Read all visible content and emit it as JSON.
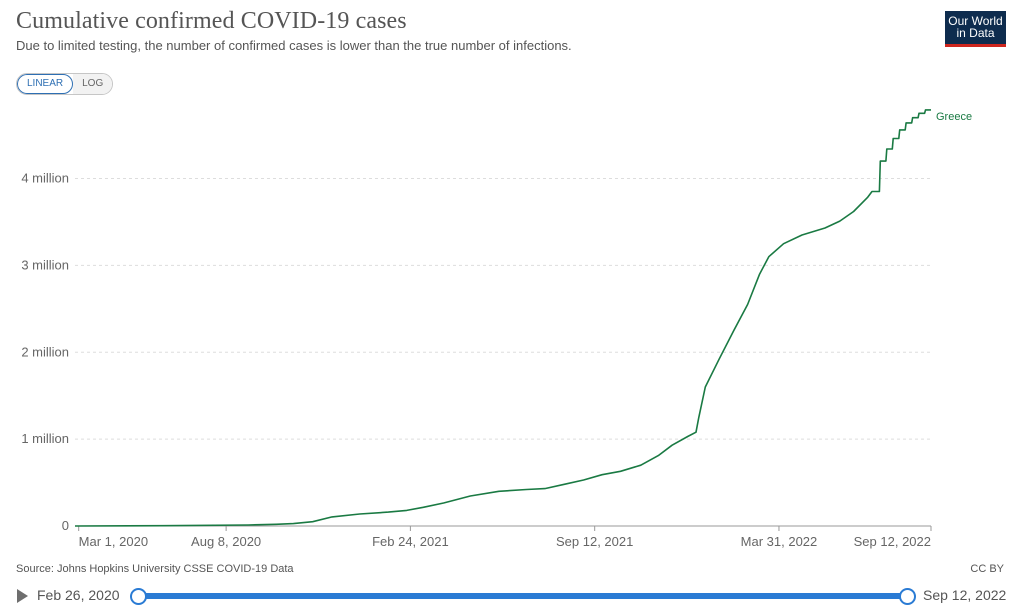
{
  "header": {
    "title": "Cumulative confirmed COVID-19 cases",
    "subtitle": "Due to limited testing, the number of confirmed cases is lower than the true number of infections.",
    "logo_line1": "Our World",
    "logo_line2": "in Data"
  },
  "scale_toggle": {
    "linear_label": "LINEAR",
    "log_label": "LOG",
    "selected": "LINEAR"
  },
  "footer": {
    "source": "Source: Johns Hopkins University CSSE COVID-19 Data",
    "license": "CC BY"
  },
  "timeline": {
    "start_label": "Feb 26, 2020",
    "end_label": "Sep 12, 2022"
  },
  "colors": {
    "series": "#1a7a43",
    "grid": "#dddddd",
    "accent": "#2a7bd4",
    "logo_bg": "#0e2c4e",
    "logo_stripe": "#ce261e"
  },
  "chart_data": {
    "type": "line",
    "title": "Cumulative confirmed COVID-19 cases",
    "subtitle": "Due to limited testing, the number of confirmed cases is lower than the true number of infections.",
    "xlabel": "",
    "ylabel": "",
    "scale": "linear",
    "grid": true,
    "legend": "right end label",
    "xlim": [
      "2020-02-26",
      "2022-09-12"
    ],
    "ylim": [
      0,
      4800000
    ],
    "x_ticks": [
      {
        "date": "2020-03-01",
        "label": "Mar 1, 2020"
      },
      {
        "date": "2020-08-08",
        "label": "Aug 8, 2020"
      },
      {
        "date": "2021-02-24",
        "label": "Feb 24, 2021"
      },
      {
        "date": "2021-09-12",
        "label": "Sep 12, 2021"
      },
      {
        "date": "2022-03-31",
        "label": "Mar 31, 2022"
      },
      {
        "date": "2022-09-12",
        "label": "Sep 12, 2022"
      }
    ],
    "y_ticks": [
      {
        "value": 0,
        "label": "0"
      },
      {
        "value": 1000000,
        "label": "1 million"
      },
      {
        "value": 2000000,
        "label": "2 million"
      },
      {
        "value": 3000000,
        "label": "3 million"
      },
      {
        "value": 4000000,
        "label": "4 million"
      }
    ],
    "series": [
      {
        "name": "Greece",
        "color": "#1a7a43",
        "points": [
          [
            "2020-02-26",
            0
          ],
          [
            "2020-06-01",
            3000
          ],
          [
            "2020-09-01",
            12000
          ],
          [
            "2020-10-01",
            20000
          ],
          [
            "2020-10-20",
            28000
          ],
          [
            "2020-11-10",
            50000
          ],
          [
            "2020-12-01",
            105000
          ],
          [
            "2020-12-31",
            138000
          ],
          [
            "2021-01-31",
            160000
          ],
          [
            "2021-02-20",
            180000
          ],
          [
            "2021-03-10",
            215000
          ],
          [
            "2021-04-01",
            265000
          ],
          [
            "2021-04-30",
            345000
          ],
          [
            "2021-05-31",
            400000
          ],
          [
            "2021-06-30",
            420000
          ],
          [
            "2021-07-20",
            430000
          ],
          [
            "2021-08-10",
            480000
          ],
          [
            "2021-08-31",
            530000
          ],
          [
            "2021-09-20",
            590000
          ],
          [
            "2021-10-10",
            630000
          ],
          [
            "2021-11-01",
            700000
          ],
          [
            "2021-11-20",
            810000
          ],
          [
            "2021-12-05",
            930000
          ],
          [
            "2021-12-22",
            1030000
          ],
          [
            "2021-12-31",
            1080000
          ],
          [
            "2022-01-03",
            1250000
          ],
          [
            "2022-01-10",
            1600000
          ],
          [
            "2022-01-25",
            1920000
          ],
          [
            "2022-02-10",
            2250000
          ],
          [
            "2022-02-25",
            2550000
          ],
          [
            "2022-03-10",
            2900000
          ],
          [
            "2022-03-20",
            3100000
          ],
          [
            "2022-04-05",
            3250000
          ],
          [
            "2022-04-25",
            3350000
          ],
          [
            "2022-05-20",
            3430000
          ],
          [
            "2022-06-05",
            3510000
          ],
          [
            "2022-06-20",
            3620000
          ],
          [
            "2022-07-05",
            3780000
          ],
          [
            "2022-07-10",
            3850000
          ],
          [
            "2022-07-18",
            3850000
          ],
          [
            "2022-07-19",
            4200000
          ],
          [
            "2022-07-25",
            4200000
          ],
          [
            "2022-07-26",
            4340000
          ],
          [
            "2022-08-01",
            4340000
          ],
          [
            "2022-08-02",
            4460000
          ],
          [
            "2022-08-08",
            4460000
          ],
          [
            "2022-08-09",
            4560000
          ],
          [
            "2022-08-15",
            4560000
          ],
          [
            "2022-08-16",
            4640000
          ],
          [
            "2022-08-22",
            4640000
          ],
          [
            "2022-08-23",
            4700000
          ],
          [
            "2022-08-29",
            4700000
          ],
          [
            "2022-08-30",
            4750000
          ],
          [
            "2022-09-05",
            4750000
          ],
          [
            "2022-09-06",
            4790000
          ],
          [
            "2022-09-12",
            4790000
          ]
        ]
      }
    ]
  }
}
